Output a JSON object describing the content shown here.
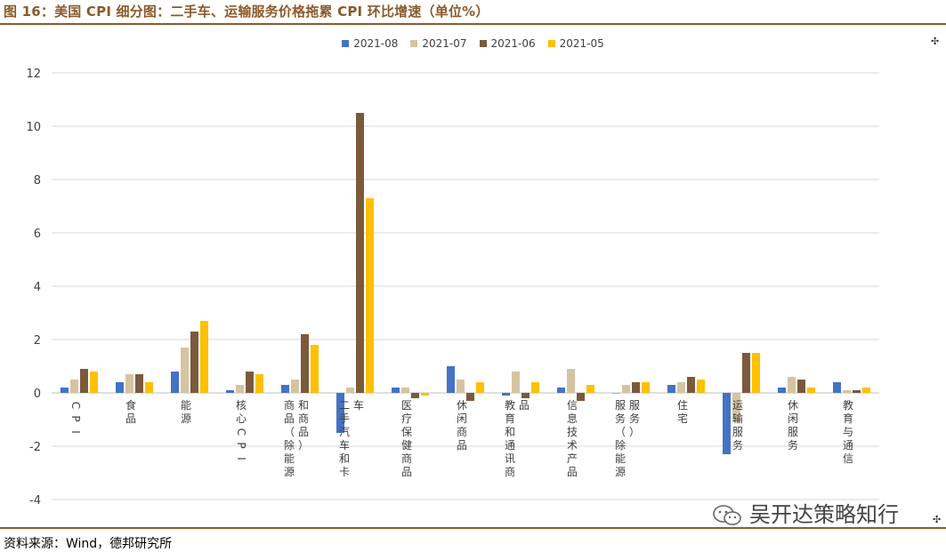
{
  "title": "图 16：美国 CPI 细分图：二手车、运输服务价格拖累 CPI 环比增速（单位%）",
  "source": "资料来源：Wind，德邦研究所",
  "watermark": "吴开达策略知行",
  "colors": {
    "accent": "#8b5a2b",
    "s1": "#4472c4",
    "s2": "#d6c4a0",
    "s3": "#7b5a3c",
    "s4": "#ffc000"
  },
  "chart_data": {
    "type": "bar",
    "ylim": [
      -4,
      12
    ],
    "yticks": [
      -4,
      -2,
      0,
      2,
      4,
      6,
      8,
      10,
      12
    ],
    "grid": true,
    "legend_position": "top",
    "categories": [
      "CPI",
      "食品",
      "能源",
      "核心CPI",
      "商品（除能源和商品）",
      "二手汽车和卡车",
      "医疗保健商品",
      "休闲商品",
      "教育和通讯商品",
      "信息技术产品",
      "服务（除能源服务）",
      "住宅",
      "运输服务",
      "休闲服务",
      "教育与通信"
    ],
    "series": [
      {
        "name": "2021-08",
        "color": "#4472c4",
        "values": [
          0.2,
          0.4,
          0.8,
          0.1,
          0.3,
          -1.5,
          0.2,
          1.0,
          -0.1,
          0.2,
          0.0,
          0.3,
          -2.3,
          0.2,
          0.4
        ]
      },
      {
        "name": "2021-07",
        "color": "#d6c4a0",
        "values": [
          0.5,
          0.7,
          1.7,
          0.3,
          0.5,
          0.2,
          0.2,
          0.5,
          0.8,
          0.9,
          0.3,
          0.4,
          -1.1,
          0.6,
          0.1
        ]
      },
      {
        "name": "2021-06",
        "color": "#7b5a3c",
        "values": [
          0.9,
          0.7,
          2.3,
          0.8,
          2.2,
          10.5,
          -0.2,
          -0.3,
          -0.2,
          -0.3,
          0.4,
          0.6,
          1.5,
          0.5,
          0.1
        ]
      },
      {
        "name": "2021-05",
        "color": "#ffc000",
        "values": [
          0.8,
          0.4,
          2.7,
          0.7,
          1.8,
          7.3,
          -0.1,
          0.4,
          0.4,
          0.3,
          0.4,
          0.5,
          1.5,
          0.2,
          0.2
        ]
      }
    ]
  }
}
